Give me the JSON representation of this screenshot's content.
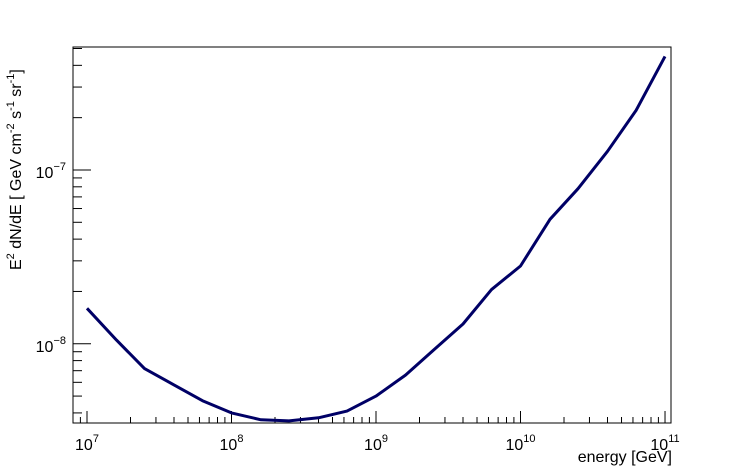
{
  "chart_data": {
    "type": "line",
    "xlabel": "energy [GeV]",
    "ylabel_main": "E",
    "ylabel_sup1": "2",
    "ylabel_mid": " dN/dE [ GeV cm",
    "ylabel_sup2": "-2",
    "ylabel_mid2": " s",
    "ylabel_sup3": "-1",
    "ylabel_mid3": " sr",
    "ylabel_sup4": "-1",
    "ylabel_end": "]",
    "x_scale": "log",
    "y_scale": "log",
    "xlim": [
      8000000.0,
      110000000000.0
    ],
    "ylim": [
      3.5e-09,
      5.1e-07
    ],
    "x_ticks": [
      {
        "value": 10000000.0,
        "base": "10",
        "exp": "7"
      },
      {
        "value": 100000000.0,
        "base": "10",
        "exp": "8"
      },
      {
        "value": 1000000000.0,
        "base": "10",
        "exp": "9"
      },
      {
        "value": 10000000000.0,
        "base": "10",
        "exp": "10"
      },
      {
        "value": 100000000000.0,
        "base": "10",
        "exp": "11"
      }
    ],
    "y_ticks": [
      {
        "value": 1e-08,
        "base": "10",
        "exp": "−8"
      },
      {
        "value": 1e-07,
        "base": "10",
        "exp": "−7"
      }
    ],
    "grid": false,
    "series": [
      {
        "color": "#000066",
        "points": [
          [
            10000000.0,
            1.6e-08
          ],
          [
            16000000.0,
            1.05e-08
          ],
          [
            25000000.0,
            7.2e-09
          ],
          [
            40000000.0,
            5.8e-09
          ],
          [
            63000000.0,
            4.7e-09
          ],
          [
            100000000.0,
            4e-09
          ],
          [
            160000000.0,
            3.65e-09
          ],
          [
            250000000.0,
            3.6e-09
          ],
          [
            400000000.0,
            3.75e-09
          ],
          [
            630000000.0,
            4.1e-09
          ],
          [
            1000000000.0,
            5e-09
          ],
          [
            1600000000.0,
            6.6e-09
          ],
          [
            2500000000.0,
            9.2e-09
          ],
          [
            4000000000.0,
            1.3e-08
          ],
          [
            6300000000.0,
            2.05e-08
          ],
          [
            10000000000.0,
            2.8e-08
          ],
          [
            16000000000.0,
            5.2e-08
          ],
          [
            25000000000.0,
            7.8e-08
          ],
          [
            40000000000.0,
            1.28e-07
          ],
          [
            63000000000.0,
            2.2e-07
          ],
          [
            100000000000.0,
            4.5e-07
          ]
        ]
      }
    ]
  }
}
